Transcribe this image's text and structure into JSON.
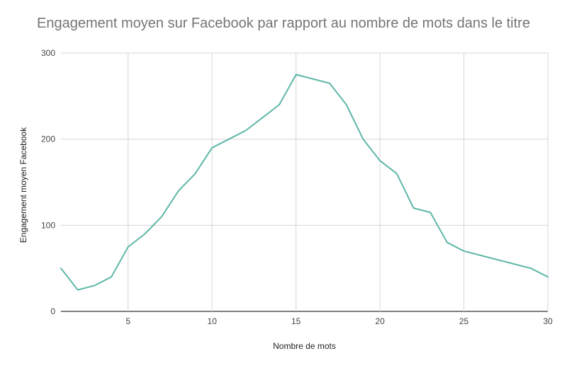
{
  "chart_data": {
    "type": "line",
    "title": "Engagement moyen sur Facebook par rapport au nombre de mots dans le titre",
    "xlabel": "Nombre de mots",
    "ylabel": "Engagement moyen Facebook",
    "xlim": [
      1,
      30
    ],
    "ylim": [
      0,
      300
    ],
    "x_ticks": [
      5,
      10,
      15,
      20,
      25,
      30
    ],
    "y_ticks": [
      0,
      100,
      200,
      300
    ],
    "grid": true,
    "legend": "none",
    "series": [
      {
        "color": "#5fb7a8",
        "points": [
          [
            1,
            50
          ],
          [
            2,
            25
          ],
          [
            3,
            30
          ],
          [
            4,
            40
          ],
          [
            5,
            75
          ],
          [
            6,
            90
          ],
          [
            7,
            110
          ],
          [
            8,
            140
          ],
          [
            9,
            160
          ],
          [
            10,
            190
          ],
          [
            11,
            200
          ],
          [
            12,
            210
          ],
          [
            13,
            225
          ],
          [
            14,
            240
          ],
          [
            15,
            275
          ],
          [
            16,
            270
          ],
          [
            17,
            265
          ],
          [
            18,
            240
          ],
          [
            19,
            200
          ],
          [
            20,
            175
          ],
          [
            21,
            160
          ],
          [
            22,
            120
          ],
          [
            23,
            115
          ],
          [
            24,
            80
          ],
          [
            25,
            70
          ],
          [
            26,
            65
          ],
          [
            27,
            60
          ],
          [
            28,
            55
          ],
          [
            29,
            50
          ],
          [
            30,
            40
          ]
        ]
      }
    ]
  }
}
